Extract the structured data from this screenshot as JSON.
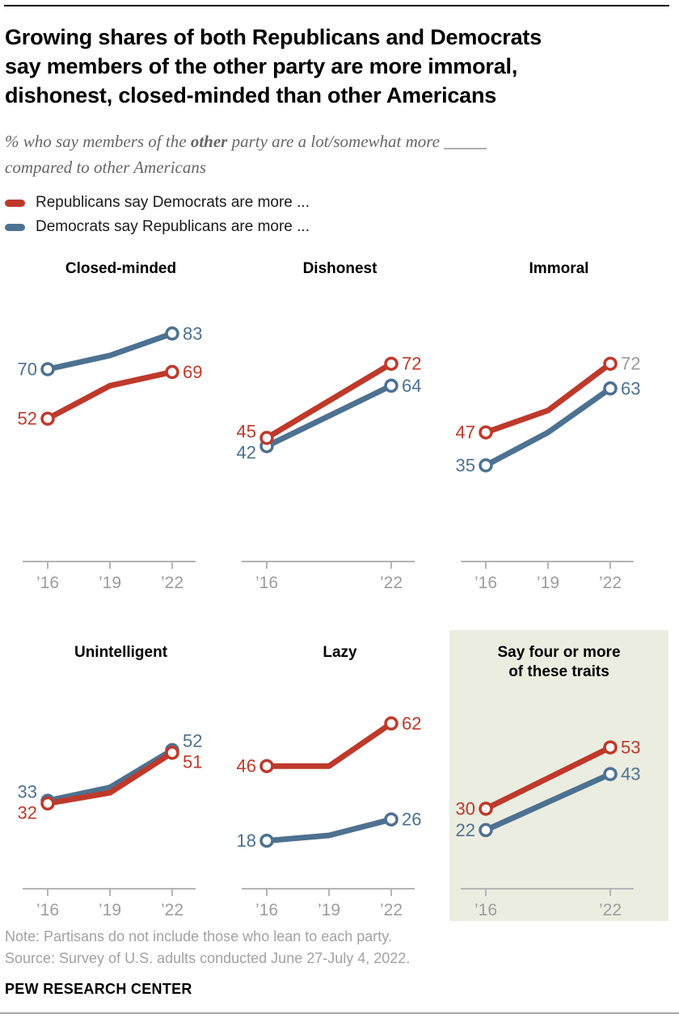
{
  "header": {
    "title_lines": [
      "Growing shares of both Republicans and Democrats",
      "say members of the other party are more immoral,",
      "dishonest, closed-minded than other Americans"
    ],
    "subtitle": {
      "lead": "% who say members of the ",
      "bold": "other",
      "tail": " party are a lot/somewhat more _____",
      "line2": "compared to other Americans"
    }
  },
  "legend": [
    {
      "series": "republicans",
      "label": "Republicans say Democrats are more ...",
      "color": "#bf392b"
    },
    {
      "series": "democrats",
      "label": "Democrats say Republicans are more ...",
      "color": "#4d7191"
    }
  ],
  "colors": {
    "republican": "#bf392b",
    "democrat": "#4d7191",
    "axis": "#b5b5b5",
    "tick_text": "#9d9d9d",
    "muted_value_label": "#9b9b9b",
    "highlight_bg": "#ecede1",
    "point_fill": "#ffffff"
  },
  "chart_data": {
    "type": "line",
    "x_unit": "year",
    "y_unit": "percent",
    "ylim": [
      0,
      100
    ],
    "grid": false,
    "legend_position": "top-left",
    "panels": [
      {
        "title_lines": [
          "Closed-minded"
        ],
        "highlighted": false,
        "ticks": [
          {
            "year": 16,
            "label": "’16"
          },
          {
            "year": 19,
            "label": "’19"
          },
          {
            "year": 22,
            "label": "’22"
          }
        ],
        "series": {
          "democrats": {
            "points": [
              [
                16,
                70
              ],
              [
                19,
                75
              ],
              [
                22,
                83
              ]
            ],
            "start_label": "70",
            "end_label": "83"
          },
          "republicans": {
            "points": [
              [
                16,
                52
              ],
              [
                19,
                64
              ],
              [
                22,
                69
              ]
            ],
            "start_label": "52",
            "end_label": "69"
          }
        }
      },
      {
        "title_lines": [
          "Dishonest"
        ],
        "highlighted": false,
        "ticks": [
          {
            "year": 16,
            "label": "’16"
          },
          {
            "year": 22,
            "label": "’22"
          }
        ],
        "series": {
          "democrats": {
            "points": [
              [
                16,
                42
              ],
              [
                22,
                64
              ]
            ],
            "start_label": "42",
            "end_label": "64"
          },
          "republicans": {
            "points": [
              [
                16,
                45
              ],
              [
                22,
                72
              ]
            ],
            "start_label": "45",
            "end_label": "72"
          }
        }
      },
      {
        "title_lines": [
          "Immoral"
        ],
        "highlighted": false,
        "ticks": [
          {
            "year": 16,
            "label": "’16"
          },
          {
            "year": 19,
            "label": "’19"
          },
          {
            "year": 22,
            "label": "’22"
          }
        ],
        "series": {
          "democrats": {
            "points": [
              [
                16,
                35
              ],
              [
                19,
                47
              ],
              [
                22,
                63
              ]
            ],
            "start_label": "35",
            "end_label": "63"
          },
          "republicans": {
            "points": [
              [
                16,
                47
              ],
              [
                19,
                55
              ],
              [
                22,
                72
              ]
            ],
            "start_label": "47",
            "end_label": "72",
            "end_label_color": "#9b9b9b"
          }
        }
      },
      {
        "title_lines": [
          "Unintelligent"
        ],
        "highlighted": false,
        "ticks": [
          {
            "year": 16,
            "label": "’16"
          },
          {
            "year": 19,
            "label": "’19"
          },
          {
            "year": 22,
            "label": "’22"
          }
        ],
        "series": {
          "democrats": {
            "points": [
              [
                16,
                33
              ],
              [
                19,
                38
              ],
              [
                22,
                52
              ]
            ],
            "start_label": "33",
            "end_label": "52"
          },
          "republicans": {
            "points": [
              [
                16,
                32
              ],
              [
                19,
                36
              ],
              [
                22,
                51
              ]
            ],
            "start_label": "32",
            "end_label": "51"
          }
        }
      },
      {
        "title_lines": [
          "Lazy"
        ],
        "highlighted": false,
        "ticks": [
          {
            "year": 16,
            "label": "’16"
          },
          {
            "year": 19,
            "label": "’19"
          },
          {
            "year": 22,
            "label": "’22"
          }
        ],
        "series": {
          "democrats": {
            "points": [
              [
                16,
                18
              ],
              [
                19,
                20
              ],
              [
                22,
                26
              ]
            ],
            "start_label": "18",
            "end_label": "26"
          },
          "republicans": {
            "points": [
              [
                16,
                46
              ],
              [
                19,
                46
              ],
              [
                22,
                62
              ]
            ],
            "start_label": "46",
            "end_label": "62"
          }
        }
      },
      {
        "title_lines": [
          "Say four or more",
          "of these traits"
        ],
        "highlighted": true,
        "ticks": [
          {
            "year": 16,
            "label": "’16"
          },
          {
            "year": 22,
            "label": "’22"
          }
        ],
        "series": {
          "democrats": {
            "points": [
              [
                16,
                22
              ],
              [
                22,
                43
              ]
            ],
            "start_label": "22",
            "end_label": "43"
          },
          "republicans": {
            "points": [
              [
                16,
                30
              ],
              [
                22,
                53
              ]
            ],
            "start_label": "30",
            "end_label": "53"
          }
        }
      }
    ]
  },
  "footer": {
    "note": "Note: Partisans do not include those who lean to each party.",
    "source": "Source: Survey of U.S. adults conducted June 27-July 4, 2022.",
    "brand": "PEW RESEARCH CENTER"
  }
}
